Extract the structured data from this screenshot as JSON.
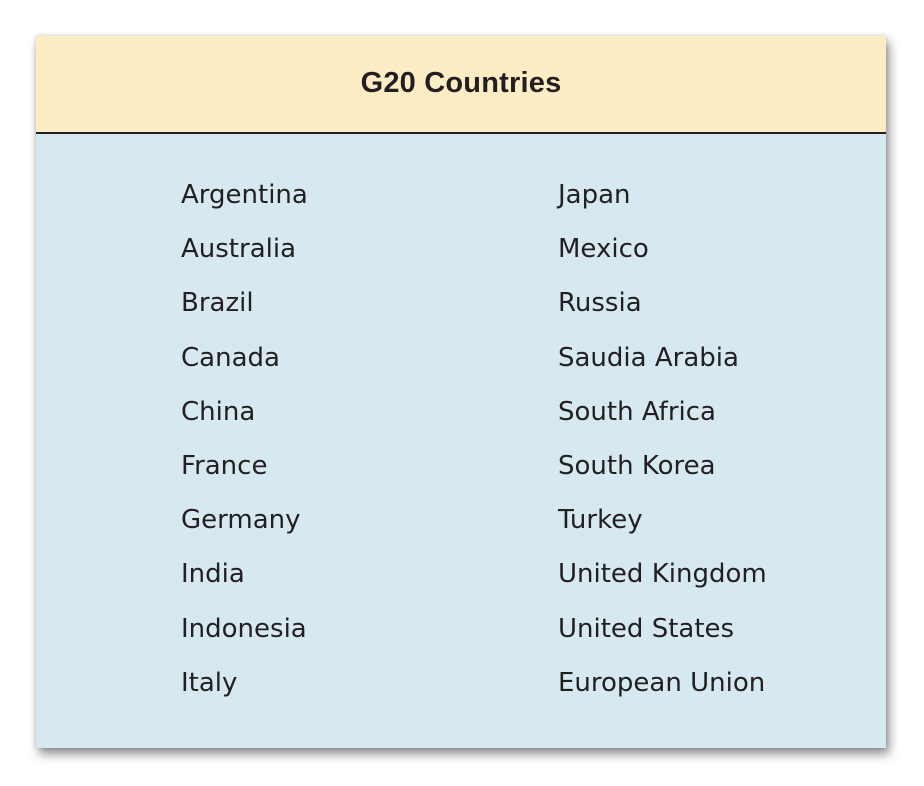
{
  "table": {
    "title": "G20 Countries",
    "left_column": [
      "Argentina",
      "Australia",
      "Brazil",
      "Canada",
      "China",
      "France",
      "Germany",
      "India",
      "Indonesia",
      "Italy"
    ],
    "right_column": [
      "Japan",
      "Mexico",
      "Russia",
      "Saudia Arabia",
      "South Africa",
      "South Korea",
      "Turkey",
      "United Kingdom",
      "United States",
      "European Union"
    ],
    "colors": {
      "header_bg": "#fdedc4",
      "body_bg": "#d6e8f0",
      "text": "#231f20"
    }
  }
}
